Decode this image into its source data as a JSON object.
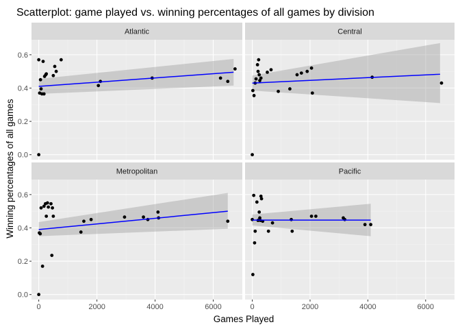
{
  "chart_data": {
    "type": "scatter",
    "title": "Scatterplot: game played vs. winning percentages of all games by division",
    "xlabel": "Games Played",
    "ylabel": "Winning percentages of all games",
    "xlim": [
      -250,
      7000
    ],
    "ylim": [
      -0.03,
      0.69
    ],
    "x_ticks": [
      0,
      2000,
      4000,
      6000
    ],
    "x_tick_labels": [
      "0",
      "2000",
      "4000",
      "6000"
    ],
    "y_ticks": [
      0.0,
      0.2,
      0.4,
      0.6
    ],
    "y_tick_labels": [
      "0.0",
      "0.2",
      "0.4",
      "0.6"
    ],
    "grid": true,
    "smooth": "linear fit with confidence band",
    "colors": {
      "panel_background": "#ebebeb",
      "grid_major": "#ffffff",
      "grid_minor": "#f3f3f3",
      "strip_background": "#d9d9d9",
      "points": "#000000",
      "fit_line": "#0000ff",
      "ribbon": "#999999"
    },
    "panels": [
      {
        "name": "Atlantic",
        "fit": {
          "x": [
            0,
            6700
          ],
          "y": [
            0.41,
            0.495
          ],
          "se_lower": [
            0.365,
            0.415
          ],
          "se_upper": [
            0.455,
            0.575
          ]
        },
        "points": [
          {
            "x": 0,
            "y": 0.57
          },
          {
            "x": 0,
            "y": 0.0
          },
          {
            "x": 30,
            "y": 0.37
          },
          {
            "x": 60,
            "y": 0.45
          },
          {
            "x": 80,
            "y": 0.395
          },
          {
            "x": 110,
            "y": 0.365
          },
          {
            "x": 150,
            "y": 0.56
          },
          {
            "x": 180,
            "y": 0.365
          },
          {
            "x": 200,
            "y": 0.47
          },
          {
            "x": 240,
            "y": 0.48
          },
          {
            "x": 260,
            "y": 0.485
          },
          {
            "x": 500,
            "y": 0.475
          },
          {
            "x": 550,
            "y": 0.53
          },
          {
            "x": 600,
            "y": 0.5
          },
          {
            "x": 770,
            "y": 0.57
          },
          {
            "x": 2050,
            "y": 0.415
          },
          {
            "x": 2120,
            "y": 0.44
          },
          {
            "x": 3900,
            "y": 0.46
          },
          {
            "x": 6250,
            "y": 0.46
          },
          {
            "x": 6500,
            "y": 0.44
          },
          {
            "x": 6750,
            "y": 0.515
          }
        ]
      },
      {
        "name": "Central",
        "fit": {
          "x": [
            0,
            6500
          ],
          "y": [
            0.43,
            0.483
          ],
          "se_lower": [
            0.385,
            0.31
          ],
          "se_upper": [
            0.475,
            0.67
          ]
        },
        "points": [
          {
            "x": 0,
            "y": 0.0
          },
          {
            "x": 20,
            "y": 0.385
          },
          {
            "x": 60,
            "y": 0.355
          },
          {
            "x": 100,
            "y": 0.43
          },
          {
            "x": 130,
            "y": 0.455
          },
          {
            "x": 180,
            "y": 0.54
          },
          {
            "x": 200,
            "y": 0.5
          },
          {
            "x": 220,
            "y": 0.57
          },
          {
            "x": 240,
            "y": 0.48
          },
          {
            "x": 260,
            "y": 0.445
          },
          {
            "x": 300,
            "y": 0.46
          },
          {
            "x": 520,
            "y": 0.495
          },
          {
            "x": 650,
            "y": 0.51
          },
          {
            "x": 900,
            "y": 0.38
          },
          {
            "x": 1300,
            "y": 0.395
          },
          {
            "x": 1550,
            "y": 0.48
          },
          {
            "x": 1700,
            "y": 0.49
          },
          {
            "x": 1900,
            "y": 0.5
          },
          {
            "x": 2050,
            "y": 0.52
          },
          {
            "x": 2080,
            "y": 0.37
          },
          {
            "x": 4150,
            "y": 0.465
          },
          {
            "x": 6550,
            "y": 0.43
          }
        ]
      },
      {
        "name": "Metropolitan",
        "fit": {
          "x": [
            0,
            6500
          ],
          "y": [
            0.39,
            0.5
          ],
          "se_lower": [
            0.35,
            0.395
          ],
          "se_upper": [
            0.435,
            0.61
          ]
        },
        "points": [
          {
            "x": 0,
            "y": 0.0
          },
          {
            "x": 20,
            "y": 0.37
          },
          {
            "x": 50,
            "y": 0.365
          },
          {
            "x": 80,
            "y": 0.52
          },
          {
            "x": 130,
            "y": 0.17
          },
          {
            "x": 180,
            "y": 0.53
          },
          {
            "x": 230,
            "y": 0.545
          },
          {
            "x": 260,
            "y": 0.47
          },
          {
            "x": 300,
            "y": 0.55
          },
          {
            "x": 330,
            "y": 0.525
          },
          {
            "x": 420,
            "y": 0.545
          },
          {
            "x": 450,
            "y": 0.235
          },
          {
            "x": 470,
            "y": 0.52
          },
          {
            "x": 500,
            "y": 0.47
          },
          {
            "x": 1450,
            "y": 0.375
          },
          {
            "x": 1550,
            "y": 0.44
          },
          {
            "x": 1800,
            "y": 0.45
          },
          {
            "x": 2950,
            "y": 0.465
          },
          {
            "x": 3600,
            "y": 0.465
          },
          {
            "x": 3750,
            "y": 0.45
          },
          {
            "x": 4100,
            "y": 0.495
          },
          {
            "x": 4120,
            "y": 0.46
          },
          {
            "x": 6500,
            "y": 0.44
          }
        ]
      },
      {
        "name": "Pacific",
        "fit": {
          "x": [
            0,
            4100
          ],
          "y": [
            0.447,
            0.447
          ],
          "se_lower": [
            0.415,
            0.35
          ],
          "se_upper": [
            0.48,
            0.545
          ]
        },
        "points": [
          {
            "x": 0,
            "y": 0.45
          },
          {
            "x": 20,
            "y": 0.12
          },
          {
            "x": 50,
            "y": 0.595
          },
          {
            "x": 80,
            "y": 0.31
          },
          {
            "x": 100,
            "y": 0.38
          },
          {
            "x": 160,
            "y": 0.555
          },
          {
            "x": 200,
            "y": 0.445
          },
          {
            "x": 240,
            "y": 0.495
          },
          {
            "x": 260,
            "y": 0.46
          },
          {
            "x": 280,
            "y": 0.445
          },
          {
            "x": 300,
            "y": 0.59
          },
          {
            "x": 320,
            "y": 0.575
          },
          {
            "x": 360,
            "y": 0.44
          },
          {
            "x": 560,
            "y": 0.38
          },
          {
            "x": 700,
            "y": 0.43
          },
          {
            "x": 1350,
            "y": 0.45
          },
          {
            "x": 1380,
            "y": 0.38
          },
          {
            "x": 2050,
            "y": 0.47
          },
          {
            "x": 2200,
            "y": 0.47
          },
          {
            "x": 3150,
            "y": 0.46
          },
          {
            "x": 3200,
            "y": 0.45
          },
          {
            "x": 3900,
            "y": 0.42
          },
          {
            "x": 4100,
            "y": 0.42
          }
        ]
      }
    ]
  }
}
